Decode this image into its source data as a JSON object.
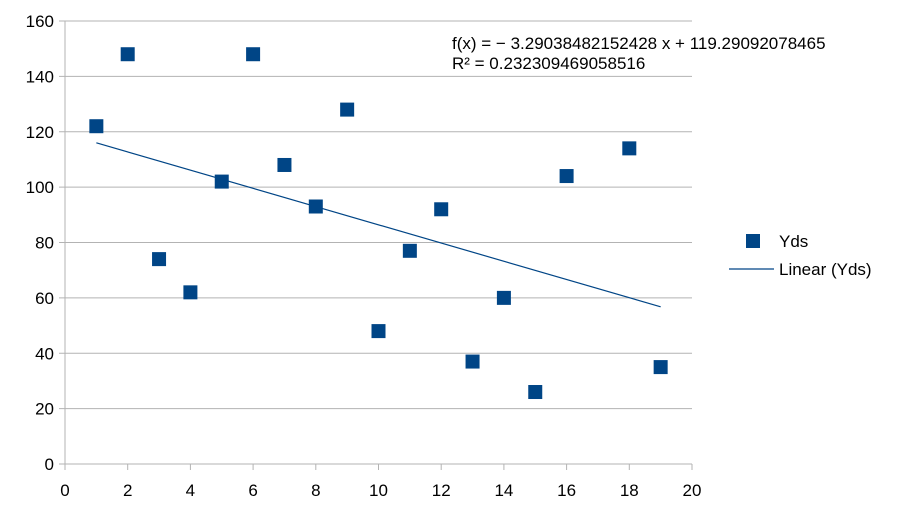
{
  "chart_data": {
    "type": "scatter",
    "xlim": [
      0,
      20
    ],
    "ylim": [
      0,
      160
    ],
    "x_ticks": [
      "0",
      "2",
      "4",
      "6",
      "8",
      "10",
      "12",
      "14",
      "16",
      "18",
      "20"
    ],
    "y_ticks": [
      "0",
      "20",
      "40",
      "60",
      "80",
      "100",
      "120",
      "140",
      "160"
    ],
    "grid": "horizontal",
    "legend_position": "right",
    "series": [
      {
        "name": "Yds",
        "color": "#004586",
        "marker": "square",
        "points": [
          {
            "x": 1,
            "y": 122
          },
          {
            "x": 2,
            "y": 148
          },
          {
            "x": 3,
            "y": 74
          },
          {
            "x": 4,
            "y": 62
          },
          {
            "x": 5,
            "y": 102
          },
          {
            "x": 6,
            "y": 148
          },
          {
            "x": 7,
            "y": 108
          },
          {
            "x": 8,
            "y": 93
          },
          {
            "x": 9,
            "y": 128
          },
          {
            "x": 10,
            "y": 48
          },
          {
            "x": 11,
            "y": 77
          },
          {
            "x": 12,
            "y": 92
          },
          {
            "x": 13,
            "y": 37
          },
          {
            "x": 14,
            "y": 60
          },
          {
            "x": 15,
            "y": 26
          },
          {
            "x": 16,
            "y": 104
          },
          {
            "x": 18,
            "y": 114
          },
          {
            "x": 19,
            "y": 35
          }
        ]
      }
    ],
    "trendline": {
      "name": "Linear (Yds)",
      "color": "#004586",
      "slope": -3.29038482152428,
      "intercept": 119.29092078465,
      "x_range": [
        1,
        19
      ],
      "equation": "f(x) = − 3.29038482152428 x + 119.29092078465",
      "r_squared": "R² = 0.232309469058516"
    }
  }
}
